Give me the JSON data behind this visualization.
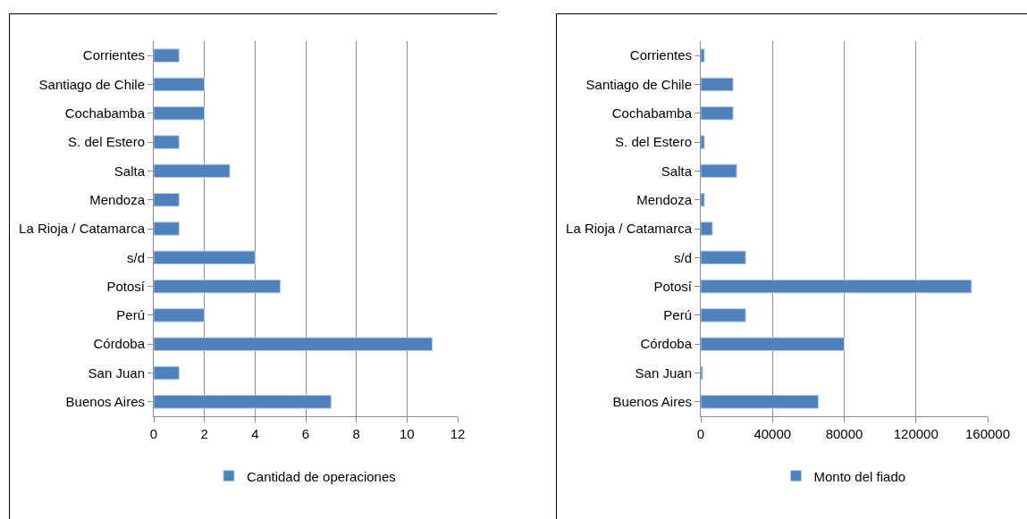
{
  "chart_data": [
    {
      "type": "bar",
      "orientation": "horizontal",
      "categories": [
        "Corrientes",
        "Santiago de Chile",
        "Cochabamba",
        "S. del Estero",
        "Salta",
        "Mendoza",
        "La Rioja / Catamarca",
        "s/d",
        "Potosí",
        "Perú",
        "Córdoba",
        "San Juan",
        "Buenos Aires"
      ],
      "series": [
        {
          "name": "Cantidad de operaciones",
          "color": "#4f81bd",
          "values": [
            1,
            2,
            2,
            1,
            3,
            1,
            1,
            4,
            5,
            2,
            11,
            1,
            7
          ]
        }
      ],
      "xlim": [
        0,
        12
      ],
      "xticks": [
        0,
        2,
        4,
        6,
        8,
        10,
        12
      ],
      "grid": "x",
      "legend": "bottom"
    },
    {
      "type": "bar",
      "orientation": "horizontal",
      "categories": [
        "Corrientes",
        "Santiago de Chile",
        "Cochabamba",
        "S. del Estero",
        "Salta",
        "Mendoza",
        "La Rioja / Catamarca",
        "s/d",
        "Potosí",
        "Perú",
        "Córdoba",
        "San Juan",
        "Buenos Aires"
      ],
      "series": [
        {
          "name": "Monto del fiado",
          "color": "#4f81bd",
          "values": [
            2000,
            18000,
            18000,
            2000,
            20000,
            2000,
            6500,
            25000,
            151000,
            25000,
            80000,
            1000,
            65500
          ]
        }
      ],
      "xlim": [
        0,
        160000
      ],
      "xticks": [
        0,
        40000,
        80000,
        120000,
        160000
      ],
      "grid": "x",
      "legend": "bottom"
    }
  ]
}
